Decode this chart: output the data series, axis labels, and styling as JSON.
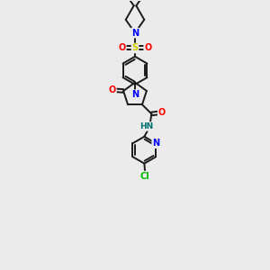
{
  "bg_color": "#ebebeb",
  "bond_color": "#1a1a1a",
  "bond_width": 1.4,
  "atom_colors": {
    "N": "#0000ff",
    "O": "#ff0000",
    "S": "#cccc00",
    "Cl": "#00bb00",
    "H": "#007070",
    "C": "#1a1a1a"
  },
  "figsize": [
    3.0,
    3.0
  ],
  "dpi": 100,
  "xlim": [
    0,
    10
  ],
  "ylim": [
    0,
    15
  ]
}
